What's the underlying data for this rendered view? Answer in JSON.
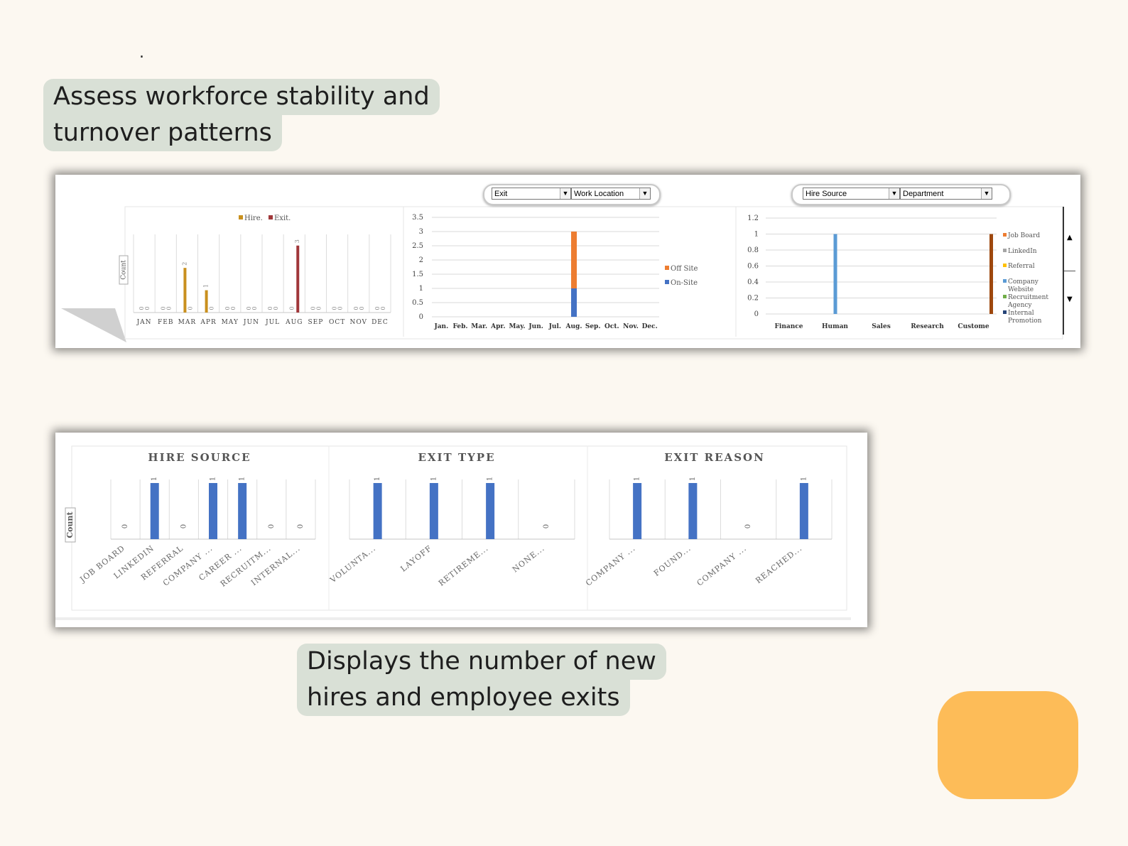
{
  "page": {
    "dot": ".",
    "caption_top": [
      "Assess workforce stability and",
      "turnover patterns"
    ],
    "caption_bottom": [
      "Displays the number of new",
      "hires and employee exits"
    ],
    "accent_color": "#fdbc58"
  },
  "dashboard_top": {
    "filter_group_1": {
      "exit_select": "Exit",
      "location_select": "Work Location"
    },
    "filter_group_2": {
      "hire_source_select": "Hire Source",
      "department_select": "Department"
    },
    "scroll_up": "▲",
    "scroll_down": "▼"
  },
  "dashboard_bottom": {},
  "chart_data": [
    {
      "id": "monthly",
      "type": "bar",
      "ylabel": "Count",
      "legend": [
        "Hire.",
        "Exit."
      ],
      "legend_placement": "top",
      "categories": [
        "JAN",
        "FEB",
        "MAR",
        "APR",
        "MAY",
        "JUN",
        "JUL",
        "AUG",
        "SEP",
        "OCT",
        "NOV",
        "DEC"
      ],
      "series": [
        {
          "name": "Hire.",
          "color": "#c9901e",
          "values": [
            0,
            0,
            2,
            1,
            0,
            0,
            0,
            0,
            0,
            0,
            0,
            0
          ]
        },
        {
          "name": "Exit.",
          "color": "#a0373a",
          "values": [
            0,
            0,
            0,
            0,
            0,
            0,
            0,
            3,
            0,
            0,
            0,
            0
          ]
        }
      ],
      "ylim": [
        0,
        3.5
      ],
      "grid": true
    },
    {
      "id": "location",
      "type": "bar",
      "stacked": true,
      "legend": [
        "Off Site",
        "On-Site"
      ],
      "legend_placement": "right",
      "categories": [
        "Jan.",
        "Feb.",
        "Mar.",
        "Apr.",
        "May.",
        "Jun.",
        "Jul.",
        "Aug.",
        "Sep.",
        "Oct.",
        "Nov.",
        "Dec."
      ],
      "series": [
        {
          "name": "On-Site",
          "color": "#4472c4",
          "values": [
            0,
            0,
            0,
            0,
            0,
            0,
            0,
            1,
            0,
            0,
            0,
            0
          ]
        },
        {
          "name": "Off Site",
          "color": "#ed7d31",
          "values": [
            0,
            0,
            0,
            0,
            0,
            0,
            0,
            2,
            0,
            0,
            0,
            0
          ]
        }
      ],
      "yticks": [
        "0",
        "0.5",
        "1",
        "1.5",
        "2",
        "2.5",
        "3",
        "3.5"
      ],
      "ylim": [
        0,
        3.5
      ],
      "grid": true
    },
    {
      "id": "department",
      "type": "bar",
      "legend": [
        "Job Board",
        "LinkedIn",
        "Referral",
        "Company Website",
        "Recruitment Agency",
        "Internal Promotion"
      ],
      "legend_colors": [
        "#ed7d31",
        "#a5a5a5",
        "#ffc000",
        "#5b9bd5",
        "#70ad47",
        "#264478"
      ],
      "legend_placement": "right",
      "categories": [
        "Finance",
        "Human",
        "Sales",
        "Research",
        "Custome"
      ],
      "series": [
        {
          "name": "LinkedIn",
          "color": "#5b9bd5",
          "values": [
            0,
            1,
            0,
            0,
            0
          ]
        },
        {
          "name": "Job Board",
          "color": "#9e480e",
          "values": [
            0,
            0,
            0,
            0,
            1
          ]
        }
      ],
      "yticks": [
        "0",
        "0.2",
        "0.4",
        "0.6",
        "0.8",
        "1",
        "1.2"
      ],
      "ylim": [
        0,
        1.2
      ],
      "grid": true
    },
    {
      "id": "hire_source",
      "type": "bar",
      "title": "HIRE SOURCE",
      "ylabel": "Count",
      "categories": [
        "JOB BOARD",
        "LINKEDIN",
        "REFERRAL",
        "COMPANY ...",
        "CAREER ...",
        "RECRUITM...",
        "INTERNAL..."
      ],
      "values": [
        0,
        1,
        0,
        1,
        1,
        0,
        0
      ],
      "color": "#4472c4",
      "ylim": [
        0,
        1
      ]
    },
    {
      "id": "exit_type",
      "type": "bar",
      "title": "EXIT TYPE",
      "categories": [
        "VOLUNTA...",
        "LAYOFF",
        "RETIREME...",
        "NONE..."
      ],
      "values": [
        1,
        1,
        1,
        0
      ],
      "color": "#4472c4",
      "ylim": [
        0,
        1
      ]
    },
    {
      "id": "exit_reason",
      "type": "bar",
      "title": "EXIT REASON",
      "categories": [
        "COMPANY ...",
        "FOUND...",
        "COMPANY ...",
        "REACHED..."
      ],
      "values": [
        1,
        1,
        0,
        1
      ],
      "color": "#4472c4",
      "ylim": [
        0,
        1
      ]
    }
  ]
}
